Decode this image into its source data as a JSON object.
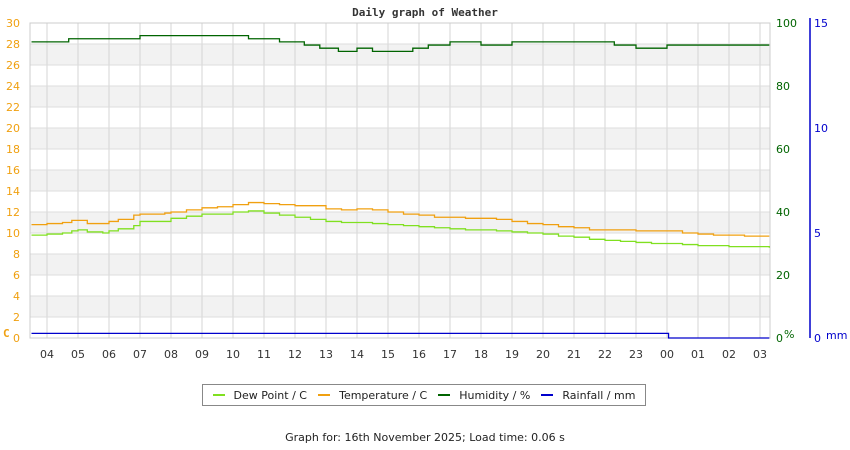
{
  "chart_data": {
    "type": "line",
    "title": "Daily graph of Weather",
    "x_categories": [
      "04",
      "05",
      "06",
      "07",
      "08",
      "09",
      "10",
      "11",
      "12",
      "13",
      "14",
      "15",
      "16",
      "17",
      "18",
      "19",
      "20",
      "21",
      "22",
      "23",
      "00",
      "01",
      "02",
      "03"
    ],
    "axes": {
      "left": {
        "label": "C",
        "min": 0,
        "max": 30,
        "ticks": [
          0,
          2,
          4,
          6,
          8,
          10,
          12,
          14,
          16,
          18,
          20,
          22,
          24,
          26,
          28,
          30
        ],
        "color": "#f0a010"
      },
      "right1": {
        "label": "%",
        "min": 0,
        "max": 100,
        "ticks": [
          0,
          20,
          40,
          60,
          80,
          100
        ],
        "color": "#006400"
      },
      "right2": {
        "label": "mm",
        "min": 0,
        "max": 15,
        "ticks": [
          0,
          5,
          10,
          15
        ],
        "color": "#0000cc"
      }
    },
    "grid": true,
    "legend_position": "bottom",
    "series": [
      {
        "name": "Dew Point / C",
        "color": "#80e020",
        "axis": "left",
        "x_hours": [
          3.5,
          4.0,
          4.5,
          4.8,
          5.0,
          5.3,
          5.8,
          6.0,
          6.3,
          6.8,
          7.0,
          7.8,
          8.0,
          8.5,
          9.0,
          9.5,
          10.0,
          10.5,
          11.0,
          11.5,
          12.0,
          12.5,
          13.0,
          13.5,
          14.0,
          14.5,
          15.0,
          15.5,
          16.0,
          16.5,
          17.0,
          17.5,
          18.0,
          18.5,
          19.0,
          19.5,
          20.0,
          20.5,
          21.0,
          21.5,
          22.0,
          22.5,
          23.0,
          23.5,
          24.0,
          24.5,
          25.0,
          25.5,
          26.0,
          26.5,
          27.3
        ],
        "values": [
          9.8,
          9.9,
          10.0,
          10.2,
          10.3,
          10.1,
          10.0,
          10.2,
          10.4,
          10.7,
          11.1,
          11.1,
          11.4,
          11.6,
          11.8,
          11.8,
          12.0,
          12.1,
          11.9,
          11.7,
          11.5,
          11.3,
          11.1,
          11.0,
          11.0,
          10.9,
          10.8,
          10.7,
          10.6,
          10.5,
          10.4,
          10.3,
          10.3,
          10.2,
          10.1,
          10.0,
          9.9,
          9.7,
          9.6,
          9.4,
          9.3,
          9.2,
          9.1,
          9.0,
          9.0,
          8.9,
          8.8,
          8.8,
          8.7,
          8.7,
          8.6
        ]
      },
      {
        "name": "Temperature / C",
        "color": "#f0a010",
        "axis": "left",
        "x_hours": [
          3.5,
          4.0,
          4.5,
          4.8,
          5.0,
          5.3,
          5.8,
          6.0,
          6.3,
          6.8,
          7.0,
          7.8,
          8.0,
          8.5,
          9.0,
          9.5,
          10.0,
          10.5,
          11.0,
          11.5,
          12.0,
          12.5,
          13.0,
          13.5,
          14.0,
          14.5,
          15.0,
          15.5,
          16.0,
          16.5,
          17.0,
          17.5,
          18.0,
          18.5,
          19.0,
          19.5,
          20.0,
          20.5,
          21.0,
          21.5,
          22.0,
          22.5,
          23.0,
          23.5,
          24.0,
          24.5,
          25.0,
          25.5,
          26.0,
          26.5,
          27.3
        ],
        "values": [
          10.8,
          10.9,
          11.0,
          11.2,
          11.2,
          10.9,
          10.9,
          11.1,
          11.3,
          11.7,
          11.8,
          11.9,
          12.0,
          12.2,
          12.4,
          12.5,
          12.7,
          12.9,
          12.8,
          12.7,
          12.6,
          12.6,
          12.3,
          12.2,
          12.3,
          12.2,
          12.0,
          11.8,
          11.7,
          11.5,
          11.5,
          11.4,
          11.4,
          11.3,
          11.1,
          10.9,
          10.8,
          10.6,
          10.5,
          10.3,
          10.3,
          10.3,
          10.2,
          10.2,
          10.2,
          10.0,
          9.9,
          9.8,
          9.8,
          9.7,
          9.7
        ]
      },
      {
        "name": "Humidity / %",
        "color": "#006400",
        "axis": "right1",
        "x_hours": [
          3.5,
          4.5,
          4.7,
          6.8,
          7.0,
          8.0,
          9.0,
          10.0,
          10.5,
          11.5,
          12.3,
          12.8,
          13.4,
          14.0,
          14.5,
          15.2,
          15.8,
          16.3,
          17.0,
          18.0,
          19.0,
          20.0,
          21.0,
          21.5,
          22.3,
          23.0,
          23.5,
          24.0,
          25.0,
          26.0,
          26.5,
          27.3
        ],
        "values": [
          94,
          94,
          95,
          95,
          96,
          96,
          96,
          96,
          95,
          94,
          93,
          92,
          91,
          92,
          91,
          91,
          92,
          93,
          94,
          93,
          94,
          94,
          94,
          94,
          93,
          92,
          92,
          93,
          93,
          93,
          93,
          93
        ],
        "range_approx": [
          91,
          96
        ]
      },
      {
        "name": "Rainfall / mm",
        "color": "#0000cc",
        "axis": "right2",
        "x_hours": [
          3.5,
          24.0,
          24.05,
          27.3
        ],
        "values": [
          0.22,
          0.22,
          0.0,
          0.0
        ]
      }
    ]
  },
  "title": "Daily graph of Weather",
  "legend": {
    "items": [
      {
        "label": "Dew Point / C",
        "color": "#80e020"
      },
      {
        "label": "Temperature / C",
        "color": "#f0a010"
      },
      {
        "label": "Humidity / %",
        "color": "#006400"
      },
      {
        "label": "Rainfall / mm",
        "color": "#0000cc"
      }
    ]
  },
  "axis_labels": {
    "left_unit": "C",
    "right1_unit": "%",
    "right2_unit": "mm"
  },
  "footer": "Graph for: 16th November 2025; Load time: 0.06 s"
}
